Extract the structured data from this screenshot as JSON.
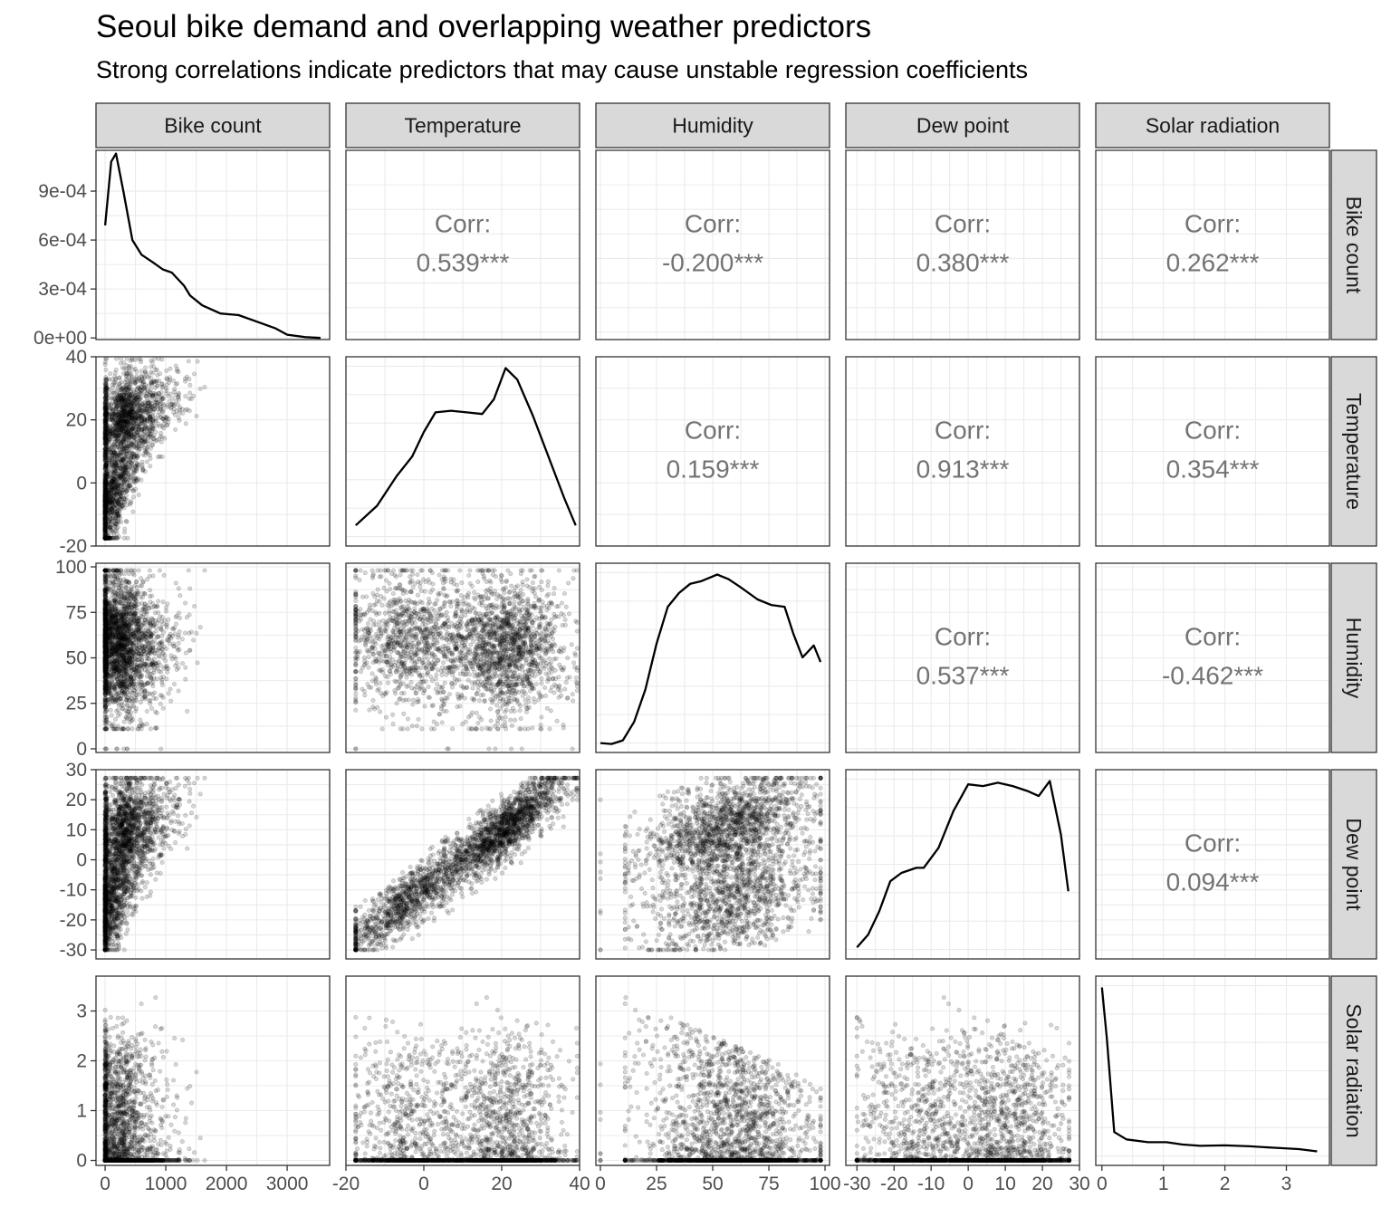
{
  "header": {
    "title": "Seoul bike demand and overlapping weather predictors",
    "subtitle": "Strong correlations indicate predictors that may cause unstable regression coefficients"
  },
  "colors": {
    "strip_fill": "#d9d9d9",
    "strip_border": "#333333",
    "panel_border": "#333333",
    "grid_major": "#ebebeb",
    "points": "#000000",
    "corr_text": "#737373"
  },
  "chart_data": {
    "type": "scatter",
    "matrix_type": "pairs",
    "variables": [
      "Bike count",
      "Temperature",
      "Humidity",
      "Dew point",
      "Solar radiation"
    ],
    "axes": {
      "Bike count": {
        "range": [
          -150,
          3700
        ],
        "ticks": [
          0,
          1000,
          2000,
          3000
        ],
        "tick_labels": [
          "0",
          "1000",
          "2000",
          "3000"
        ]
      },
      "Temperature": {
        "range": [
          -20,
          40
        ],
        "ticks": [
          -20,
          0,
          20,
          40
        ],
        "tick_labels": [
          "-20",
          "0",
          "20",
          "40"
        ]
      },
      "Humidity": {
        "range": [
          -2,
          102
        ],
        "ticks": [
          0,
          25,
          50,
          75,
          100
        ],
        "tick_labels": [
          "0",
          "25",
          "50",
          "75",
          "100"
        ]
      },
      "Dew point": {
        "range": [
          -33,
          30
        ],
        "ticks": [
          -30,
          -20,
          -10,
          0,
          10,
          20,
          30
        ],
        "tick_labels": [
          "-30",
          "-20",
          "-10",
          "0",
          "10",
          "20",
          "30"
        ]
      },
      "Solar radiation": {
        "range": [
          -0.1,
          3.7
        ],
        "ticks": [
          0,
          1,
          2,
          3
        ],
        "tick_labels": [
          "0",
          "1",
          "2",
          "3"
        ]
      }
    },
    "density_axis": {
      "range": [
        -1e-05,
        0.00115
      ],
      "ticks": [
        0,
        0.0003,
        0.0006,
        0.0009
      ],
      "tick_labels": [
        "0e+00",
        "3e-04",
        "6e-04",
        "9e-04"
      ]
    },
    "densities": {
      "Bike count": [
        [
          0,
          0.00069
        ],
        [
          100,
          0.00108
        ],
        [
          180,
          0.00113
        ],
        [
          300,
          0.0009
        ],
        [
          450,
          0.0006
        ],
        [
          600,
          0.00051
        ],
        [
          800,
          0.00046
        ],
        [
          950,
          0.00042
        ],
        [
          1100,
          0.0004
        ],
        [
          1300,
          0.00032
        ],
        [
          1400,
          0.00026
        ],
        [
          1600,
          0.0002
        ],
        [
          1900,
          0.00015
        ],
        [
          2200,
          0.00014
        ],
        [
          2500,
          0.0001
        ],
        [
          2800,
          6e-05
        ],
        [
          3000,
          2e-05
        ],
        [
          3300,
          5e-06
        ],
        [
          3550,
          0.0
        ]
      ],
      "Temperature": [
        [
          -17.5,
          0.008
        ],
        [
          -12,
          0.02
        ],
        [
          -7,
          0.038
        ],
        [
          -3,
          0.05
        ],
        [
          0,
          0.065
        ],
        [
          3,
          0.077
        ],
        [
          7,
          0.078
        ],
        [
          11,
          0.077
        ],
        [
          15,
          0.076
        ],
        [
          18,
          0.085
        ],
        [
          21,
          0.104
        ],
        [
          24,
          0.097
        ],
        [
          28,
          0.075
        ],
        [
          32,
          0.05
        ],
        [
          36,
          0.025
        ],
        [
          39,
          0.008
        ]
      ],
      "Humidity": [
        [
          0,
          0.0002
        ],
        [
          5,
          0.0001
        ],
        [
          10,
          0.0005
        ],
        [
          15,
          0.0025
        ],
        [
          20,
          0.006
        ],
        [
          25,
          0.011
        ],
        [
          30,
          0.015
        ],
        [
          35,
          0.0165
        ],
        [
          40,
          0.0175
        ],
        [
          45,
          0.0178
        ],
        [
          52,
          0.0185
        ],
        [
          57,
          0.018
        ],
        [
          62,
          0.0172
        ],
        [
          70,
          0.0158
        ],
        [
          76,
          0.0152
        ],
        [
          82,
          0.015
        ],
        [
          86,
          0.012
        ],
        [
          90,
          0.0095
        ],
        [
          95,
          0.0108
        ],
        [
          98,
          0.009
        ]
      ],
      "Dew point": [
        [
          -30,
          0.0012
        ],
        [
          -27,
          0.005
        ],
        [
          -24,
          0.012
        ],
        [
          -21,
          0.021
        ],
        [
          -18,
          0.0235
        ],
        [
          -14,
          0.025
        ],
        [
          -12,
          0.025
        ],
        [
          -8,
          0.031
        ],
        [
          -4,
          0.042
        ],
        [
          0,
          0.05
        ],
        [
          4,
          0.0495
        ],
        [
          8,
          0.0505
        ],
        [
          12,
          0.0495
        ],
        [
          16,
          0.048
        ],
        [
          19,
          0.0465
        ],
        [
          22,
          0.051
        ],
        [
          25,
          0.035
        ],
        [
          27,
          0.018
        ]
      ],
      "Solar radiation": [
        [
          0,
          1.85
        ],
        [
          0.08,
          1.3
        ],
        [
          0.2,
          0.28
        ],
        [
          0.4,
          0.2
        ],
        [
          0.75,
          0.17
        ],
        [
          1.05,
          0.17
        ],
        [
          1.3,
          0.145
        ],
        [
          1.6,
          0.13
        ],
        [
          2.0,
          0.135
        ],
        [
          2.4,
          0.125
        ],
        [
          2.8,
          0.11
        ],
        [
          3.2,
          0.095
        ],
        [
          3.5,
          0.07
        ]
      ]
    },
    "correlations": [
      {
        "x": "Temperature",
        "y": "Bike count",
        "label": "Corr:",
        "value": "0.539***"
      },
      {
        "x": "Humidity",
        "y": "Bike count",
        "label": "Corr:",
        "value": "-0.200***"
      },
      {
        "x": "Dew point",
        "y": "Bike count",
        "label": "Corr:",
        "value": "0.380***"
      },
      {
        "x": "Solar radiation",
        "y": "Bike count",
        "label": "Corr:",
        "value": "0.262***"
      },
      {
        "x": "Humidity",
        "y": "Temperature",
        "label": "Corr:",
        "value": "0.159***"
      },
      {
        "x": "Dew point",
        "y": "Temperature",
        "label": "Corr:",
        "value": "0.913***"
      },
      {
        "x": "Solar radiation",
        "y": "Temperature",
        "label": "Corr:",
        "value": "0.354***"
      },
      {
        "x": "Dew point",
        "y": "Humidity",
        "label": "Corr:",
        "value": "0.537***"
      },
      {
        "x": "Solar radiation",
        "y": "Humidity",
        "label": "Corr:",
        "value": "-0.462***"
      },
      {
        "x": "Solar radiation",
        "y": "Dew point",
        "label": "Corr:",
        "value": "0.094***"
      }
    ],
    "scatter_points": "lower-triangle scatterplots of all hourly observations (about 8760 points, semi-transparent black)",
    "grid": true,
    "legend": "none"
  }
}
